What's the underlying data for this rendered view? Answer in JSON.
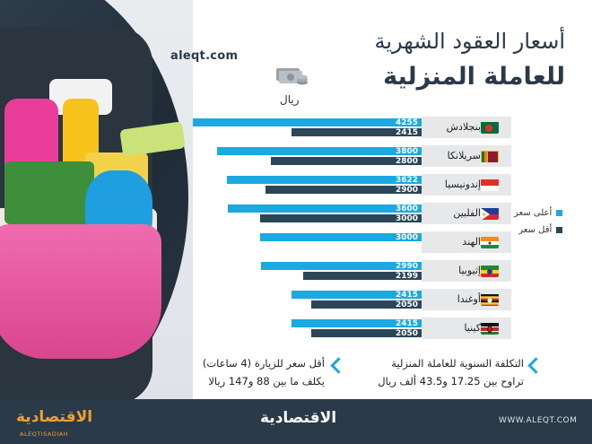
{
  "header": {
    "title_line1": "أسعار العقود الشهرية",
    "title_line2": "للعاملة المنزلية",
    "site_url": "aleqt.com",
    "unit": "ريال"
  },
  "chart_data": {
    "type": "bar",
    "orientation": "horizontal",
    "categories": [
      "بنجلادش",
      "سريلانكا",
      "إندونيسيا",
      "الفلبين",
      "الهند",
      "إثيوبيا",
      "أوغندا",
      "كينيا"
    ],
    "series": [
      {
        "name": "أعلى سعر",
        "color": "#1aa9e1",
        "values": [
          4255,
          3800,
          3622,
          3600,
          3000,
          2990,
          2415,
          2415
        ]
      },
      {
        "name": "أقل سعر",
        "color": "#2a4658",
        "values": [
          2415,
          2800,
          2900,
          3000,
          null,
          2199,
          2050,
          2050
        ]
      }
    ],
    "xlim": [
      0,
      4255
    ],
    "legend": "right"
  },
  "flags": [
    "bangladesh",
    "sri-lanka",
    "indonesia",
    "philippines",
    "india",
    "ethiopia",
    "uganda",
    "kenya"
  ],
  "notes": {
    "annual_cost_title": "التكلفة السنوية للعاملة المنزلية",
    "annual_cost_body": "تراوح بين 17.25 و43.5 ألف ريال",
    "visit_title": "أقل سعر للزيارة (4 ساعات)",
    "visit_body": "يكلف ما بين 88 و147 ريالا"
  },
  "footer": {
    "url": "WWW.ALEQT.COM",
    "logo": "الاقتصادية",
    "corner_logo": "الاقتصادية",
    "corner_sub": "ALEQTISADIAH"
  }
}
